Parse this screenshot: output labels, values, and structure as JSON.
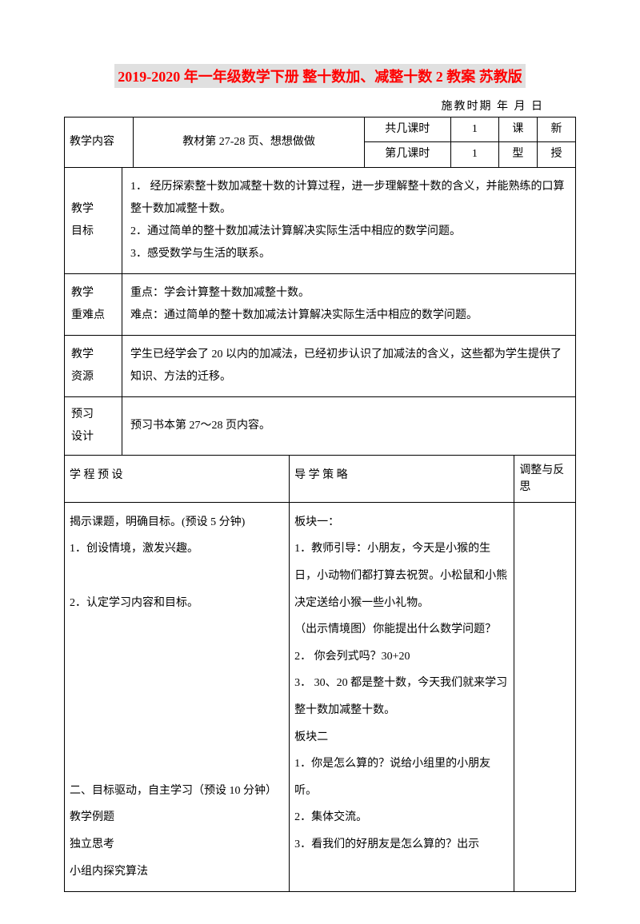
{
  "title": "2019-2020 年一年级数学下册 整十数加、减整十数 2 教案 苏教版",
  "dateLine": "施教时期      年    月    日",
  "header": {
    "row1": {
      "label": "教学内容",
      "content": "教材第 27-28 页、想想做做",
      "periodLabel1": "共几课时",
      "periodVal1": "1",
      "typeLabel": "课",
      "typeVal": "新",
      "periodLabel2": "第几课时",
      "periodVal2": "1",
      "typeLabel2": "型",
      "typeVal2": "授"
    }
  },
  "sections": {
    "mubiao": {
      "label": "教学\n目标",
      "content": "1．  经历探索整十数加减整十数的计算过程，进一步理解整十数的含义，并能熟练的口算整十数加减整十数。\n2．通过简单的整十数加减法计算解决实际生活中相应的数学问题。\n3．感受数学与生活的联系。"
    },
    "zhongnan": {
      "label": "教学\n重难点",
      "content": "重点：学会计算整十数加减整十数。\n难点：通过简单的整十数加减法计算解决实际生活中相应的数学问题。"
    },
    "ziyuan": {
      "label": "教学\n资源",
      "content": "学生已经学会了 20 以内的加减法，已经初步认识了加减法的含义，这些都为学生提供了知识、方法的迁移。"
    },
    "yuxi": {
      "label": "预习\n设计",
      "content": "预习书本第 27～28 页内容。"
    }
  },
  "bottomTable": {
    "headers": {
      "col1": "学 程 预 设",
      "col2": "导 学 策 略",
      "col3": "调整与反思"
    },
    "col1": "揭示课题，明确目标。(预设 5 分钟)\n1．创设情境，激发兴趣。\n\n2．认定学习内容和目标。\n\n\n\n\n\n\n二、目标驱动，自主学习（预设 10 分钟）\n教学例题\n独立思考\n小组内探究算法",
    "col2": "板块一：\n1．教师引导：小朋友，今天是小猴的生日，小动物们都打算去祝贺。小松鼠和小熊决定送给小猴一些小礼物。\n（出示情境图）你能提出什么数学问题？\n2． 你会列式吗？30+20\n3．   30、20 都是整十数，今天我们就来学习整十数加减整十数。\n板块二\n1．你是怎么算的？说给小组里的小朋友听。\n2．集体交流。\n3．看我们的好朋友是怎么算的？出示",
    "col3": ""
  },
  "colors": {
    "titleColor": "#ff0000",
    "titleBg": "#e0e0e0",
    "border": "#000000",
    "text": "#000000",
    "background": "#ffffff"
  },
  "typography": {
    "titleFontSize": 18,
    "bodyFontSize": 14,
    "lineHeight": 2.0
  }
}
